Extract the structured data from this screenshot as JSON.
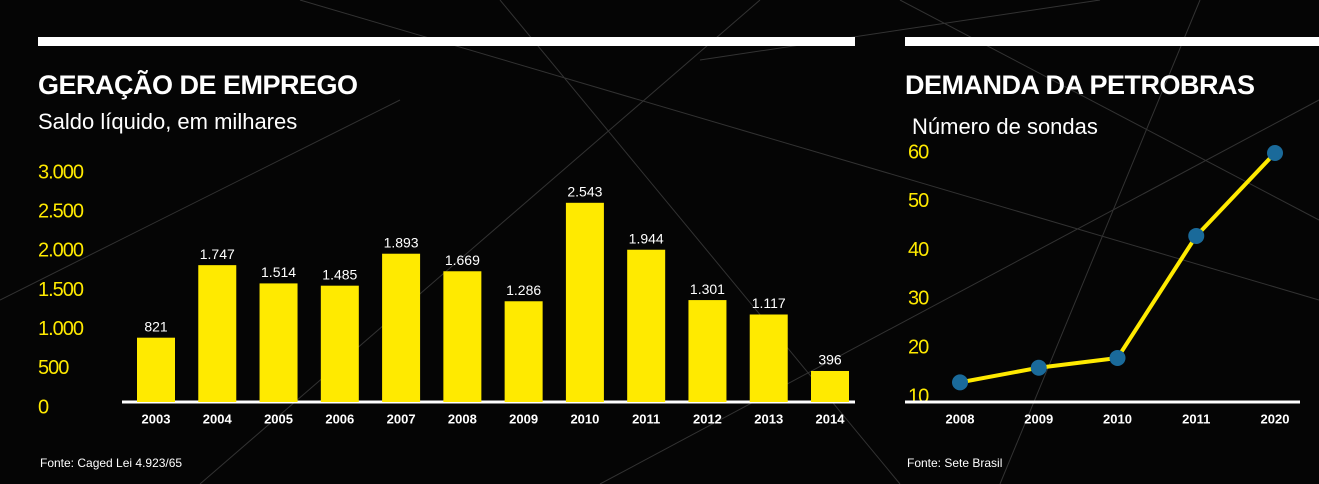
{
  "chart_data": [
    {
      "type": "bar",
      "title": "GERAÇÃO DE EMPREGO",
      "subtitle": "Saldo líquido, em milhares",
      "categories": [
        "2003",
        "2004",
        "2005",
        "2006",
        "2007",
        "2008",
        "2009",
        "2010",
        "2011",
        "2012",
        "2013",
        "2014"
      ],
      "values": [
        821,
        1747,
        1514,
        1485,
        1893,
        1669,
        1286,
        2543,
        1944,
        1301,
        1117,
        396
      ],
      "value_labels": [
        "821",
        "1.747",
        "1.514",
        "1.485",
        "1.893",
        "1.669",
        "1.286",
        "2.543",
        "1.944",
        "1.301",
        "1.117",
        "396"
      ],
      "color": "#ffea00",
      "ylim": [
        0,
        3000
      ],
      "yticks": [
        0,
        500,
        {
          "value": 1000,
          "label": "1.000"
        },
        {
          "value": 1500,
          "label": "1.500"
        },
        {
          "value": 2000,
          "label": "2.000"
        },
        {
          "value": 2500,
          "label": "2.500"
        },
        {
          "value": 3000,
          "label": "3.000"
        }
      ],
      "source": "Fonte: Caged Lei 4.923/65"
    },
    {
      "type": "line",
      "title": "DEMANDA DA PETROBRAS",
      "subtitle": "Número de sondas",
      "categories": [
        "2008",
        "2009",
        "2010",
        "2011",
        "2020"
      ],
      "values": [
        13,
        16,
        18,
        43,
        60
      ],
      "color": "#ffea00",
      "marker_color": "#1a6a9a",
      "ylim": [
        10,
        60
      ],
      "yticks": [
        10,
        20,
        30,
        40,
        50,
        60
      ],
      "source": "Fonte: Sete Brasil"
    }
  ]
}
